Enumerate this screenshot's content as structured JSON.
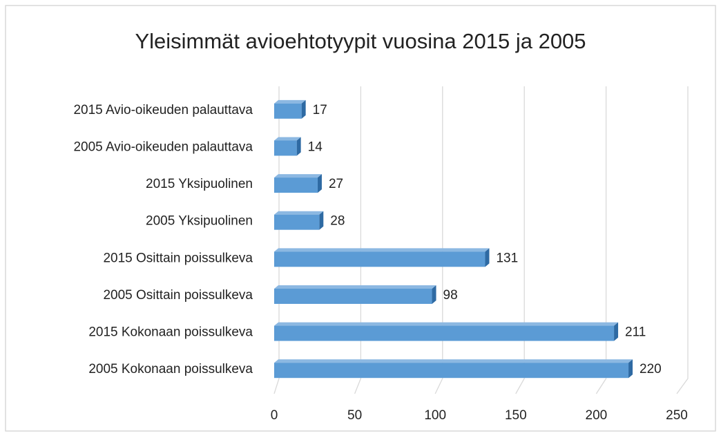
{
  "chart_data": {
    "type": "bar",
    "orientation": "horizontal",
    "title": "Yleisimmät avioehtotyypit vuosina 2015 ja 2005",
    "categories": [
      "2015 Avio-oikeuden palauttava",
      "2005 Avio-oikeuden palauttava",
      "2015 Yksipuolinen",
      "2005 Yksipuolinen",
      "2015 Osittain poissulkeva",
      "2005 Osittain poissulkeva",
      "2015 Kokonaan poissulkeva",
      "2005 Kokonaan poissulkeva"
    ],
    "values": [
      17,
      14,
      27,
      28,
      131,
      98,
      211,
      220
    ],
    "color": "#5b9bd5",
    "xlim": [
      0,
      250
    ],
    "xticks": [
      0,
      50,
      100,
      150,
      200,
      250
    ],
    "grid": true
  }
}
